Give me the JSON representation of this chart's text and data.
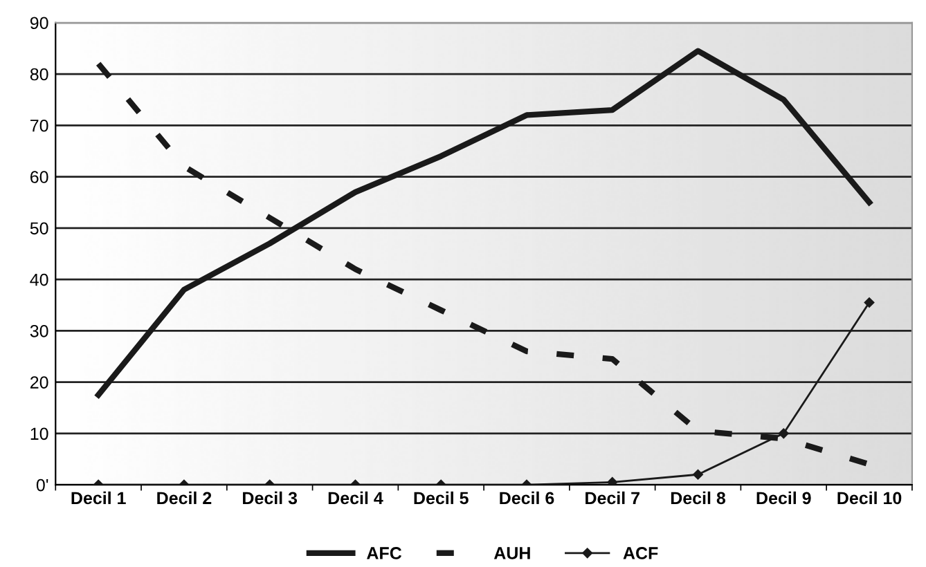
{
  "chart_data": {
    "type": "line",
    "categories": [
      "Decil 1",
      "Decil 2",
      "Decil 3",
      "Decil 4",
      "Decil 5",
      "Decil 6",
      "Decil 7",
      "Decil 8",
      "Decil 9",
      "Decil 10"
    ],
    "series": [
      {
        "name": "AFC",
        "color": "#1a1a1a",
        "line_style": "solid",
        "marker": "none",
        "values": [
          17.5,
          38,
          47,
          57,
          64,
          72,
          73,
          84.5,
          75,
          55
        ]
      },
      {
        "name": "AUH",
        "color": "#1a1a1a",
        "line_style": "dashed",
        "marker": "none",
        "values": [
          82,
          62,
          52,
          42,
          34,
          26,
          24.5,
          10.5,
          9,
          4
        ]
      },
      {
        "name": "ACF",
        "color": "#1a1a1a",
        "line_style": "solid",
        "marker": "diamond",
        "values": [
          0,
          0,
          0,
          0,
          0,
          0,
          0.5,
          2,
          10,
          35.5
        ]
      }
    ],
    "ylim": [
      0,
      90
    ],
    "yticks": [
      {
        "value": 0,
        "label": "0'"
      },
      10,
      20,
      30,
      40,
      50,
      60,
      70,
      80,
      90
    ],
    "grid": "y",
    "legend": "bottom"
  }
}
